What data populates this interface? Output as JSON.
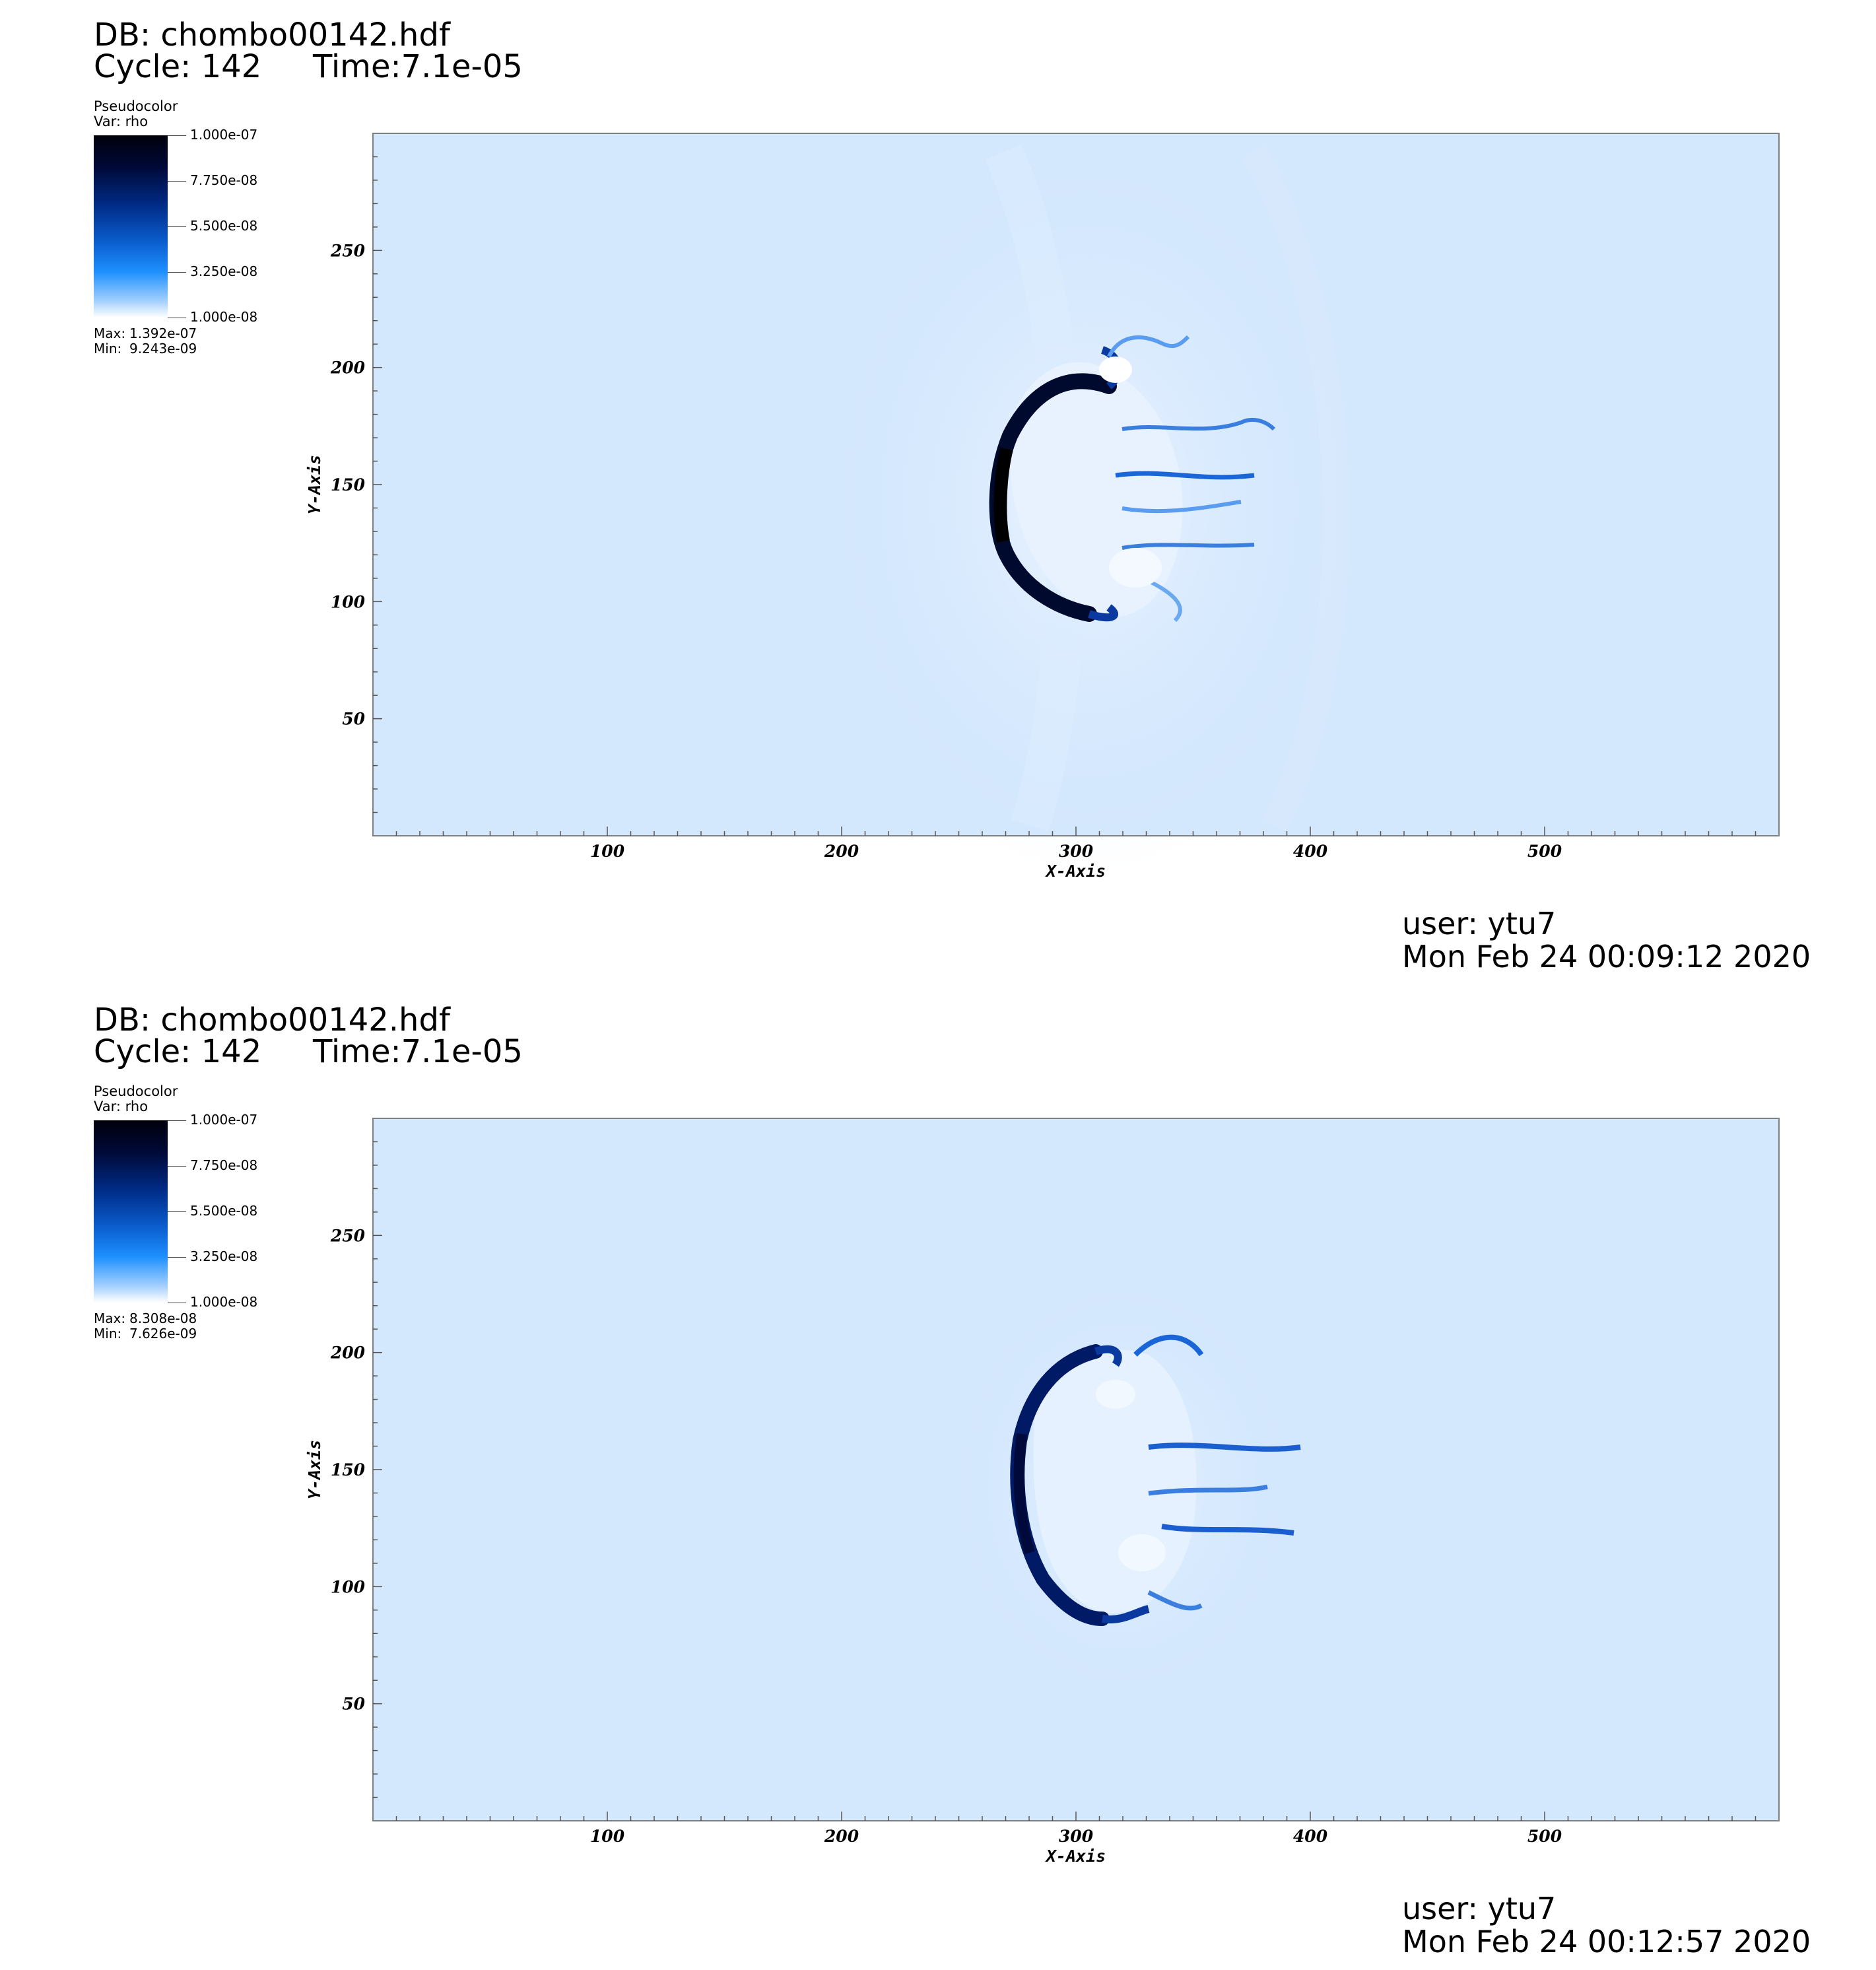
{
  "panels": [
    {
      "db": "DB: chombo00142.hdf",
      "cycle": "Cycle: 142",
      "time": "Time:7.1e-05",
      "legend": {
        "title": "Pseudocolor",
        "var": "Var: rho",
        "labels": [
          "1.000e-07",
          "7.750e-08",
          "5.500e-08",
          "3.250e-08",
          "1.000e-08"
        ],
        "max_label": "Max:",
        "max_value": "1.392e-07",
        "min_label": "Min:",
        "min_value": "9.243e-09"
      },
      "user": "user: ytu7",
      "date": "Mon Feb 24 00:09:12 2020"
    },
    {
      "db": "DB: chombo00142.hdf",
      "cycle": "Cycle: 142",
      "time": "Time:7.1e-05",
      "legend": {
        "title": "Pseudocolor",
        "var": "Var: rho",
        "labels": [
          "1.000e-07",
          "7.750e-08",
          "5.500e-08",
          "3.250e-08",
          "1.000e-08"
        ],
        "max_label": "Max:",
        "max_value": "8.308e-08",
        "min_label": "Min:",
        "min_value": "7.626e-09"
      },
      "user": "user: ytu7",
      "date": "Mon Feb 24 00:12:57 2020"
    }
  ],
  "chart_data": [
    {
      "type": "heatmap",
      "variable": "rho",
      "xlabel": "X-Axis",
      "ylabel": "Y-Axis",
      "xlim": [
        0,
        600
      ],
      "ylim": [
        0,
        300
      ],
      "x_ticks": [
        100,
        200,
        300,
        400,
        500
      ],
      "y_ticks": [
        50,
        100,
        150,
        200,
        250
      ],
      "colorbar_range": [
        1e-08,
        1e-07
      ],
      "colorbar_ticks": [
        1e-07,
        7.75e-08,
        5.5e-08,
        3.25e-08,
        1e-08
      ],
      "data_max": 1.392e-07,
      "data_min": 9.243e-09,
      "colors": {
        "background": "#d3e7fd",
        "dense": "#000014",
        "mid": "#0050c8",
        "light": "#ffffff"
      }
    },
    {
      "type": "heatmap",
      "variable": "rho",
      "xlabel": "X-Axis",
      "ylabel": "Y-Axis",
      "xlim": [
        0,
        600
      ],
      "ylim": [
        0,
        300
      ],
      "x_ticks": [
        100,
        200,
        300,
        400,
        500
      ],
      "y_ticks": [
        50,
        100,
        150,
        200,
        250
      ],
      "colorbar_range": [
        1e-08,
        1e-07
      ],
      "colorbar_ticks": [
        1e-07,
        7.75e-08,
        5.5e-08,
        3.25e-08,
        1e-08
      ],
      "data_max": 8.308e-08,
      "data_min": 7.626e-09,
      "colors": {
        "background": "#d3e7fd",
        "dense": "#000a3a",
        "mid": "#0050c8",
        "light": "#ffffff"
      }
    }
  ]
}
